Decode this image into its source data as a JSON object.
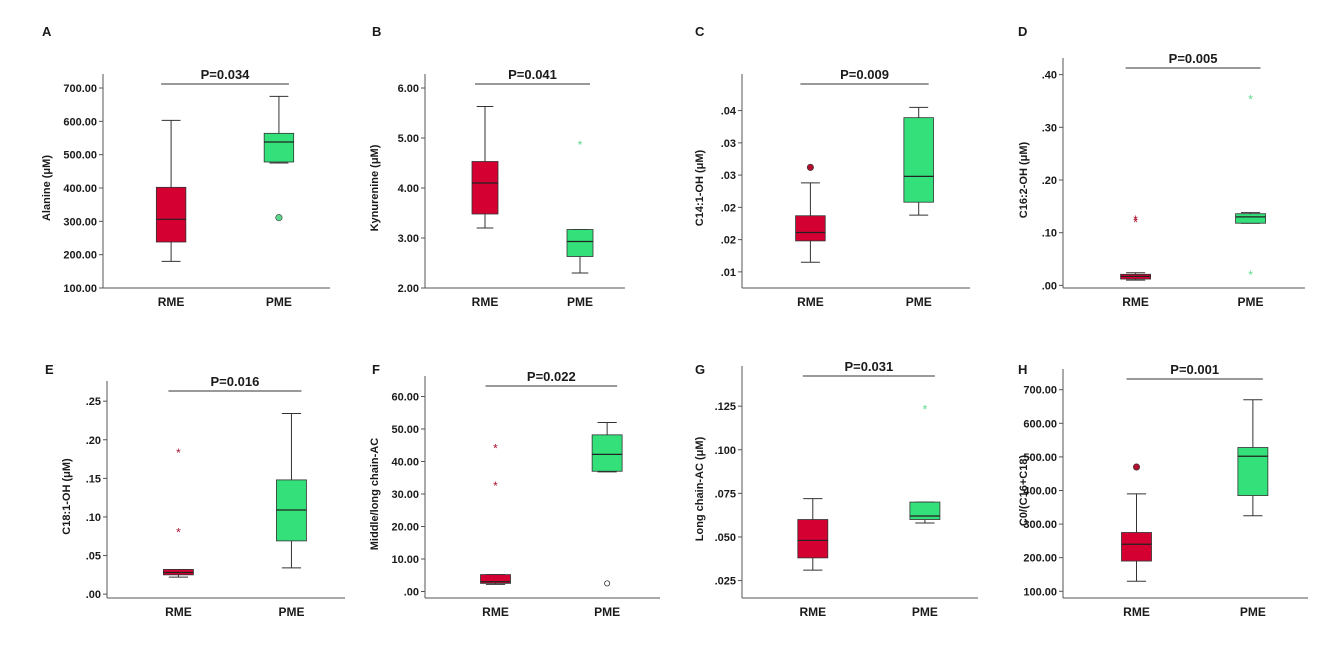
{
  "colors": {
    "RME": "#d50032",
    "PME": "#33e07a",
    "RME_dot": "#b0102e",
    "PME_dot": "#5ad98a",
    "outline": "#333333"
  },
  "chart_data": [
    {
      "type": "box",
      "panel": "A",
      "ylabel": "Alanine (μM)",
      "pvalue": "P=0.034",
      "ylim": [
        100,
        700
      ],
      "ticks": [
        100,
        200,
        300,
        400,
        500,
        600,
        700
      ],
      "tick_labels": [
        "100.00",
        "200.00",
        "300.00",
        "400.00",
        "500.00",
        "600.00",
        "700.00"
      ],
      "categories": [
        "RME",
        "PME"
      ],
      "boxes": [
        {
          "group": "RME",
          "min": 180,
          "q1": 238,
          "median": 306,
          "q3": 402,
          "max": 603,
          "outliers": []
        },
        {
          "group": "PME",
          "min": 475,
          "q1": 478,
          "median": 538,
          "q3": 564,
          "max": 675,
          "outliers": [
            {
              "value": 311,
              "symbol": "circle"
            }
          ]
        }
      ]
    },
    {
      "type": "box",
      "panel": "B",
      "ylabel": "Kynurenine (μM)",
      "pvalue": "P=0.041",
      "ylim": [
        2.0,
        6.0
      ],
      "ticks": [
        2,
        3,
        4,
        5,
        6
      ],
      "tick_labels": [
        "2.00",
        "3.00",
        "4.00",
        "5.00",
        "6.00"
      ],
      "categories": [
        "RME",
        "PME"
      ],
      "boxes": [
        {
          "group": "RME",
          "min": 3.2,
          "q1": 3.48,
          "median": 4.1,
          "q3": 4.53,
          "max": 5.63,
          "outliers": []
        },
        {
          "group": "PME",
          "min": 2.3,
          "q1": 2.63,
          "median": 2.93,
          "q3": 3.17,
          "max": 3.17,
          "outliers": [
            {
              "value": 4.86,
              "symbol": "star"
            }
          ]
        }
      ]
    },
    {
      "type": "box",
      "panel": "C",
      "ylabel": "C14:1-OH (μM)",
      "pvalue": "P=0.009",
      "ylim": [
        0.0125,
        0.0435
      ],
      "ticks": [
        0.015,
        0.02,
        0.025,
        0.03,
        0.035,
        0.04
      ],
      "tick_labels": [
        ".01",
        ".02",
        ".02",
        ".03",
        ".03",
        ".04"
      ],
      "categories": [
        "RME",
        "PME"
      ],
      "boxes": [
        {
          "group": "RME",
          "min": 0.0165,
          "q1": 0.0198,
          "median": 0.0211,
          "q3": 0.0237,
          "max": 0.0288,
          "outliers": [
            {
              "value": 0.0312,
              "symbol": "circle"
            }
          ]
        },
        {
          "group": "PME",
          "min": 0.0238,
          "q1": 0.0258,
          "median": 0.0298,
          "q3": 0.0389,
          "max": 0.0405,
          "outliers": []
        }
      ]
    },
    {
      "type": "box",
      "panel": "D",
      "ylabel": "C16:2-OH (μM)",
      "pvalue": "P=0.005",
      "ylim": [
        -0.005,
        0.405
      ],
      "ticks": [
        0,
        0.1,
        0.2,
        0.3,
        0.4
      ],
      "tick_labels": [
        ".00",
        ".10",
        ".20",
        ".30",
        ".40"
      ],
      "categories": [
        "RME",
        "PME"
      ],
      "boxes": [
        {
          "group": "RME",
          "min": 0.01,
          "q1": 0.012,
          "median": 0.017,
          "q3": 0.021,
          "max": 0.024,
          "outliers": [
            {
              "value": 0.119,
              "symbol": "star"
            },
            {
              "value": 0.124,
              "symbol": "star"
            }
          ]
        },
        {
          "group": "PME",
          "min": 0.118,
          "q1": 0.118,
          "median": 0.13,
          "q3": 0.136,
          "max": 0.138,
          "outliers": [
            {
              "value": 0.353,
              "symbol": "star"
            },
            {
              "value": 0.02,
              "symbol": "star"
            }
          ]
        }
      ]
    },
    {
      "type": "box",
      "panel": "E",
      "ylabel": "C18:1-OH (μM)",
      "pvalue": "P=0.016",
      "ylim": [
        -0.005,
        0.258
      ],
      "ticks": [
        0,
        0.05,
        0.1,
        0.15,
        0.2,
        0.25
      ],
      "tick_labels": [
        ".00",
        ".05",
        ".10",
        ".15",
        ".20",
        ".25"
      ],
      "categories": [
        "RME",
        "PME"
      ],
      "boxes": [
        {
          "group": "RME",
          "min": 0.022,
          "q1": 0.025,
          "median": 0.028,
          "q3": 0.032,
          "max": 0.032,
          "outliers": [
            {
              "value": 0.183,
              "symbol": "star"
            },
            {
              "value": 0.08,
              "symbol": "star"
            }
          ]
        },
        {
          "group": "PME",
          "min": 0.034,
          "q1": 0.069,
          "median": 0.109,
          "q3": 0.148,
          "max": 0.234,
          "outliers": []
        }
      ]
    },
    {
      "type": "box",
      "panel": "F",
      "ylabel": "Middle/long chain-AC",
      "pvalue": "P=0.022",
      "ylim": [
        -2,
        62
      ],
      "ticks": [
        0,
        10,
        20,
        30,
        40,
        50,
        60
      ],
      "tick_labels": [
        ".00",
        "10.00",
        "20.00",
        "30.00",
        "40.00",
        "50.00",
        "60.00"
      ],
      "categories": [
        "RME",
        "PME"
      ],
      "boxes": [
        {
          "group": "RME",
          "min": 2.2,
          "q1": 2.5,
          "median": 3.0,
          "q3": 5.2,
          "max": 5.2,
          "outliers": [
            {
              "value": 44.0,
              "symbol": "star"
            },
            {
              "value": 32.5,
              "symbol": "star"
            }
          ]
        },
        {
          "group": "PME",
          "min": 36.8,
          "q1": 37.0,
          "median": 42.2,
          "q3": 48.2,
          "max": 52.0,
          "outliers": [
            {
              "value": 2.5,
              "symbol": "circle-open"
            }
          ]
        }
      ]
    },
    {
      "type": "box",
      "panel": "G",
      "ylabel": "Long chain-AC  (μM)",
      "pvalue": "P=0.031",
      "ylim": [
        0.015,
        0.14
      ],
      "ticks": [
        0.025,
        0.05,
        0.075,
        0.1,
        0.125
      ],
      "tick_labels": [
        ".025",
        ".050",
        ".075",
        ".100",
        ".125"
      ],
      "categories": [
        "RME",
        "PME"
      ],
      "boxes": [
        {
          "group": "RME",
          "min": 0.031,
          "q1": 0.038,
          "median": 0.048,
          "q3": 0.06,
          "max": 0.072,
          "outliers": []
        },
        {
          "group": "PME",
          "min": 0.058,
          "q1": 0.06,
          "median": 0.062,
          "q3": 0.07,
          "max": 0.07,
          "outliers": [
            {
              "value": 0.123,
              "symbol": "star"
            }
          ]
        }
      ]
    },
    {
      "type": "box",
      "panel": "H",
      "ylabel": "C0/(C16+C18)",
      "pvalue": "P=0.001",
      "ylim": [
        80,
        720
      ],
      "ticks": [
        100,
        200,
        300,
        400,
        500,
        600,
        700
      ],
      "tick_labels": [
        "100.00",
        "200.00",
        "300.00",
        "400.00",
        "500.00",
        "600.00",
        "700.00"
      ],
      "categories": [
        "RME",
        "PME"
      ],
      "boxes": [
        {
          "group": "RME",
          "min": 130,
          "q1": 190,
          "median": 240,
          "q3": 275,
          "max": 390,
          "outliers": [
            {
              "value": 470,
              "symbol": "circle"
            }
          ]
        },
        {
          "group": "PME",
          "min": 325,
          "q1": 385,
          "median": 502,
          "q3": 528,
          "max": 670,
          "outliers": []
        }
      ]
    }
  ]
}
